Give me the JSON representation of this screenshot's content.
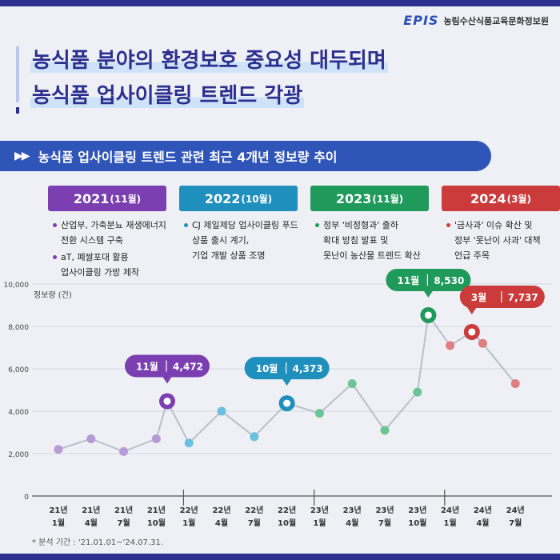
{
  "logo": {
    "mark": "EPIS",
    "org": "농림수산식품교육문화정보원"
  },
  "title": {
    "line1": "농식품 분야의 환경보호 중요성 대두되며",
    "line2": "농식품 업사이클링 트렌드 각광"
  },
  "section": {
    "arrows": "▶▶",
    "text": "농식품 업사이클링 트렌드 관련 최근 4개년 정보량 추이"
  },
  "years": [
    {
      "year": "2021",
      "month": "(11월)",
      "color": "#7b3fb1",
      "bullets": [
        "산업부, 가축분뇨 재생에너지\n전환 시스템 구축",
        "aT, 폐쌀포대 활용\n업사이클링 가방 제작"
      ]
    },
    {
      "year": "2022",
      "month": "(10월)",
      "color": "#1f8fbd",
      "bullets": [
        "CJ 제일제당 업사이클링 푸드\n상품 출시 계기,\n기업 개발 상품 조명"
      ]
    },
    {
      "year": "2023",
      "month": "(11월)",
      "color": "#1f9a5a",
      "bullets": [
        "정부 '비정형과' 출하\n확대 방침 발표 및\n못난이 농산물 트렌드 확산"
      ]
    },
    {
      "year": "2024",
      "month": "(3월)",
      "color": "#cc3b3b",
      "bullets": [
        "'금사과' 이슈 확산 및\n정부 '못난이 사과' 대책\n언급 주목"
      ]
    }
  ],
  "chart_data": {
    "type": "line",
    "ylabel": "정보량 (건)",
    "ylim": [
      0,
      10000
    ],
    "yticks": [
      "0",
      "2,000",
      "4,000",
      "6,000",
      "8,000",
      "10,000"
    ],
    "categories": [
      "21년\n1월",
      "21년\n4월",
      "21년\n7월",
      "21년\n10월",
      "22년\n1월",
      "22년\n4월",
      "22년\n7월",
      "22년\n10월",
      "23년\n1월",
      "23년\n4월",
      "23년\n7월",
      "23년\n10월",
      "24년\n1월",
      "24년\n4월",
      "24년\n7월"
    ],
    "x": [
      "2021-01",
      "2021-02",
      "2021-03",
      "2021-04",
      "2021-05",
      "2021-06",
      "2021-07",
      "2021-08",
      "2021-09",
      "2021-10",
      "2021-11",
      "2021-12",
      "2022-01",
      "2022-02",
      "2022-03",
      "2022-04",
      "2022-05",
      "2022-06",
      "2022-07",
      "2022-08",
      "2022-09",
      "2022-10",
      "2022-11",
      "2022-12",
      "2023-01",
      "2023-02",
      "2023-03",
      "2023-04",
      "2023-05",
      "2023-06",
      "2023-07",
      "2023-08",
      "2023-09",
      "2023-10",
      "2023-11",
      "2023-12",
      "2024-01",
      "2024-02",
      "2024-03",
      "2024-04",
      "2024-05",
      "2024-06",
      "2024-07"
    ],
    "points": [
      {
        "x": "2021-01",
        "y": 2200
      },
      {
        "x": "2021-04",
        "y": 2700
      },
      {
        "x": "2021-07",
        "y": 2100
      },
      {
        "x": "2021-10",
        "y": 2700
      },
      {
        "x": "2021-11",
        "y": 4472,
        "label": "11월",
        "value_label": "4,472",
        "color": "#7b3fb1"
      },
      {
        "x": "2022-01",
        "y": 2500
      },
      {
        "x": "2022-04",
        "y": 4000
      },
      {
        "x": "2022-07",
        "y": 2800
      },
      {
        "x": "2022-10",
        "y": 4373,
        "label": "10월",
        "value_label": "4,373",
        "color": "#1f8fbd"
      },
      {
        "x": "2023-01",
        "y": 3900
      },
      {
        "x": "2023-04",
        "y": 5300
      },
      {
        "x": "2023-07",
        "y": 3100
      },
      {
        "x": "2023-10",
        "y": 4900
      },
      {
        "x": "2023-11",
        "y": 8530,
        "label": "11월",
        "value_label": "8,530",
        "color": "#1f9a5a"
      },
      {
        "x": "2024-01",
        "y": 7100
      },
      {
        "x": "2024-03",
        "y": 7737,
        "label": "3월",
        "value_label": "7,737",
        "color": "#cc3b3b"
      },
      {
        "x": "2024-04",
        "y": 7200
      },
      {
        "x": "2024-07",
        "y": 5300
      }
    ],
    "dot_color": "#b79bd6",
    "line_color": "#b9bfca",
    "grid": true
  },
  "footnote": "* 분석 기간 : '21.01.01~'24.07.31."
}
